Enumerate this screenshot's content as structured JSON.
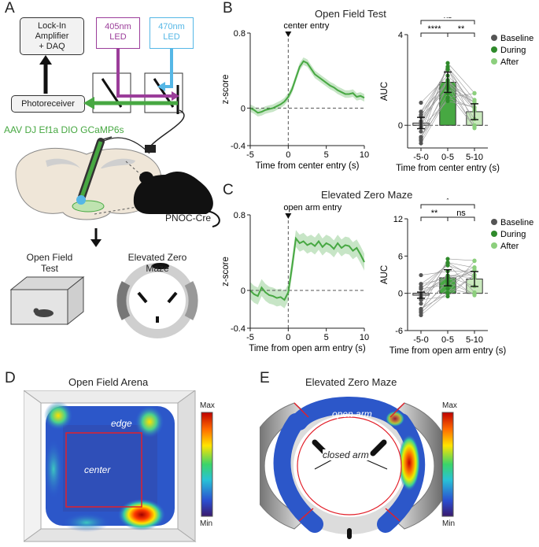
{
  "panels": {
    "A": "A",
    "B": "B",
    "C": "C",
    "D": "D",
    "E": "E"
  },
  "panelA": {
    "lockin_line1": "Lock-In",
    "lockin_line2": "Amplifier",
    "lockin_line3": "+ DAQ",
    "photoreceiver": "Photoreceiver",
    "led405_line1": "405nm",
    "led405_line2": "LED",
    "led470_line1": "470nm",
    "led470_line2": "LED",
    "virus": "AAV DJ Ef1a DIO GCaMP6s",
    "mouse_line": "PNOC-Cre",
    "oft_line1": "Open Field",
    "oft_line2": "Test",
    "ezm_line1": "Elevated Zero",
    "ezm_line2": "Maze",
    "colors": {
      "led405": "#9b3d9a",
      "led470": "#55b7e6",
      "green": "#47a842"
    }
  },
  "panelB": {
    "title": "Open Field Test",
    "event_label": "center entry",
    "legend": [
      "Baseline",
      "During",
      "After"
    ],
    "sig": {
      "left": "****",
      "right": "**",
      "top": "ns"
    }
  },
  "panelC": {
    "title": "Elevated Zero Maze",
    "event_label": "open arm entry",
    "legend": [
      "Baseline",
      "During",
      "After"
    ],
    "sig": {
      "left": "**",
      "right": "ns",
      "top": "*"
    }
  },
  "panelD": {
    "title": "Open Field Arena",
    "edge_label": "edge",
    "center_label": "center",
    "cbar_max": "Max",
    "cbar_min": "Min"
  },
  "panelE": {
    "title": "Elevated Zero Maze",
    "open_label": "open arm",
    "closed_label": "closed arm",
    "cbar_max": "Max",
    "cbar_min": "Min"
  },
  "chart_data": [
    {
      "id": "B-trace",
      "type": "line",
      "x": [
        -5,
        -4.5,
        -4,
        -3.5,
        -3,
        -2.5,
        -2,
        -1.5,
        -1,
        -0.5,
        0,
        0.5,
        1,
        1.5,
        2,
        2.5,
        3,
        3.5,
        4,
        4.5,
        5,
        5.5,
        6,
        6.5,
        7,
        7.5,
        8,
        8.5,
        9,
        9.5,
        10
      ],
      "values": [
        0.0,
        -0.02,
        -0.05,
        -0.04,
        -0.02,
        -0.01,
        0.0,
        0.02,
        0.04,
        0.07,
        0.12,
        0.2,
        0.32,
        0.44,
        0.5,
        0.48,
        0.42,
        0.36,
        0.33,
        0.3,
        0.27,
        0.24,
        0.22,
        0.19,
        0.17,
        0.15,
        0.15,
        0.16,
        0.12,
        0.13,
        0.11
      ],
      "sem": 0.04,
      "xlabel": "Time from center entry (s)",
      "ylabel": "z-score",
      "xlim": [
        -5,
        10
      ],
      "ylim": [
        -0.4,
        0.8
      ],
      "xticks": [
        -5,
        0,
        5,
        10
      ],
      "yticks": [
        -0.4,
        0,
        0.8
      ]
    },
    {
      "id": "B-bars",
      "type": "bar",
      "categories": [
        "-5-0",
        "0-5",
        "5-10"
      ],
      "values": [
        0.1,
        1.9,
        0.6
      ],
      "errors": [
        0.25,
        0.45,
        0.35
      ],
      "xlabel": "Time from center entry (s)",
      "ylabel": "AUC",
      "ylim": [
        -1,
        4
      ],
      "yticks": [
        0,
        4
      ],
      "series_names": [
        "Baseline",
        "During",
        "After"
      ]
    },
    {
      "id": "C-trace",
      "type": "line",
      "x": [
        -5,
        -4.5,
        -4,
        -3.5,
        -3,
        -2.5,
        -2,
        -1.5,
        -1,
        -0.5,
        0,
        0.5,
        1,
        1.5,
        2,
        2.5,
        3,
        3.5,
        4,
        4.5,
        5,
        5.5,
        6,
        6.5,
        7,
        7.5,
        8,
        8.5,
        9,
        9.5,
        10
      ],
      "values": [
        0.0,
        -0.04,
        -0.06,
        0.03,
        -0.02,
        -0.05,
        -0.06,
        -0.08,
        -0.07,
        -0.1,
        -0.02,
        0.25,
        0.55,
        0.5,
        0.52,
        0.48,
        0.5,
        0.47,
        0.52,
        0.46,
        0.5,
        0.48,
        0.44,
        0.5,
        0.45,
        0.48,
        0.47,
        0.42,
        0.45,
        0.38,
        0.3
      ],
      "sem": 0.09,
      "xlabel": "Time from open arm entry (s)",
      "ylabel": "z-score",
      "xlim": [
        -5,
        10
      ],
      "ylim": [
        -0.4,
        0.8
      ],
      "xticks": [
        -5,
        0,
        5,
        10
      ],
      "yticks": [
        -0.4,
        0,
        0.8
      ]
    },
    {
      "id": "C-bars",
      "type": "bar",
      "categories": [
        "-5-0",
        "0-5",
        "5-10"
      ],
      "values": [
        -0.3,
        2.5,
        2.3
      ],
      "errors": [
        0.5,
        1.3,
        1.2
      ],
      "xlabel": "Time from open arm entry (s)",
      "ylabel": "AUC",
      "ylim": [
        -6,
        12
      ],
      "yticks": [
        -6,
        0,
        6,
        12
      ],
      "series_names": [
        "Baseline",
        "During",
        "After"
      ]
    }
  ]
}
